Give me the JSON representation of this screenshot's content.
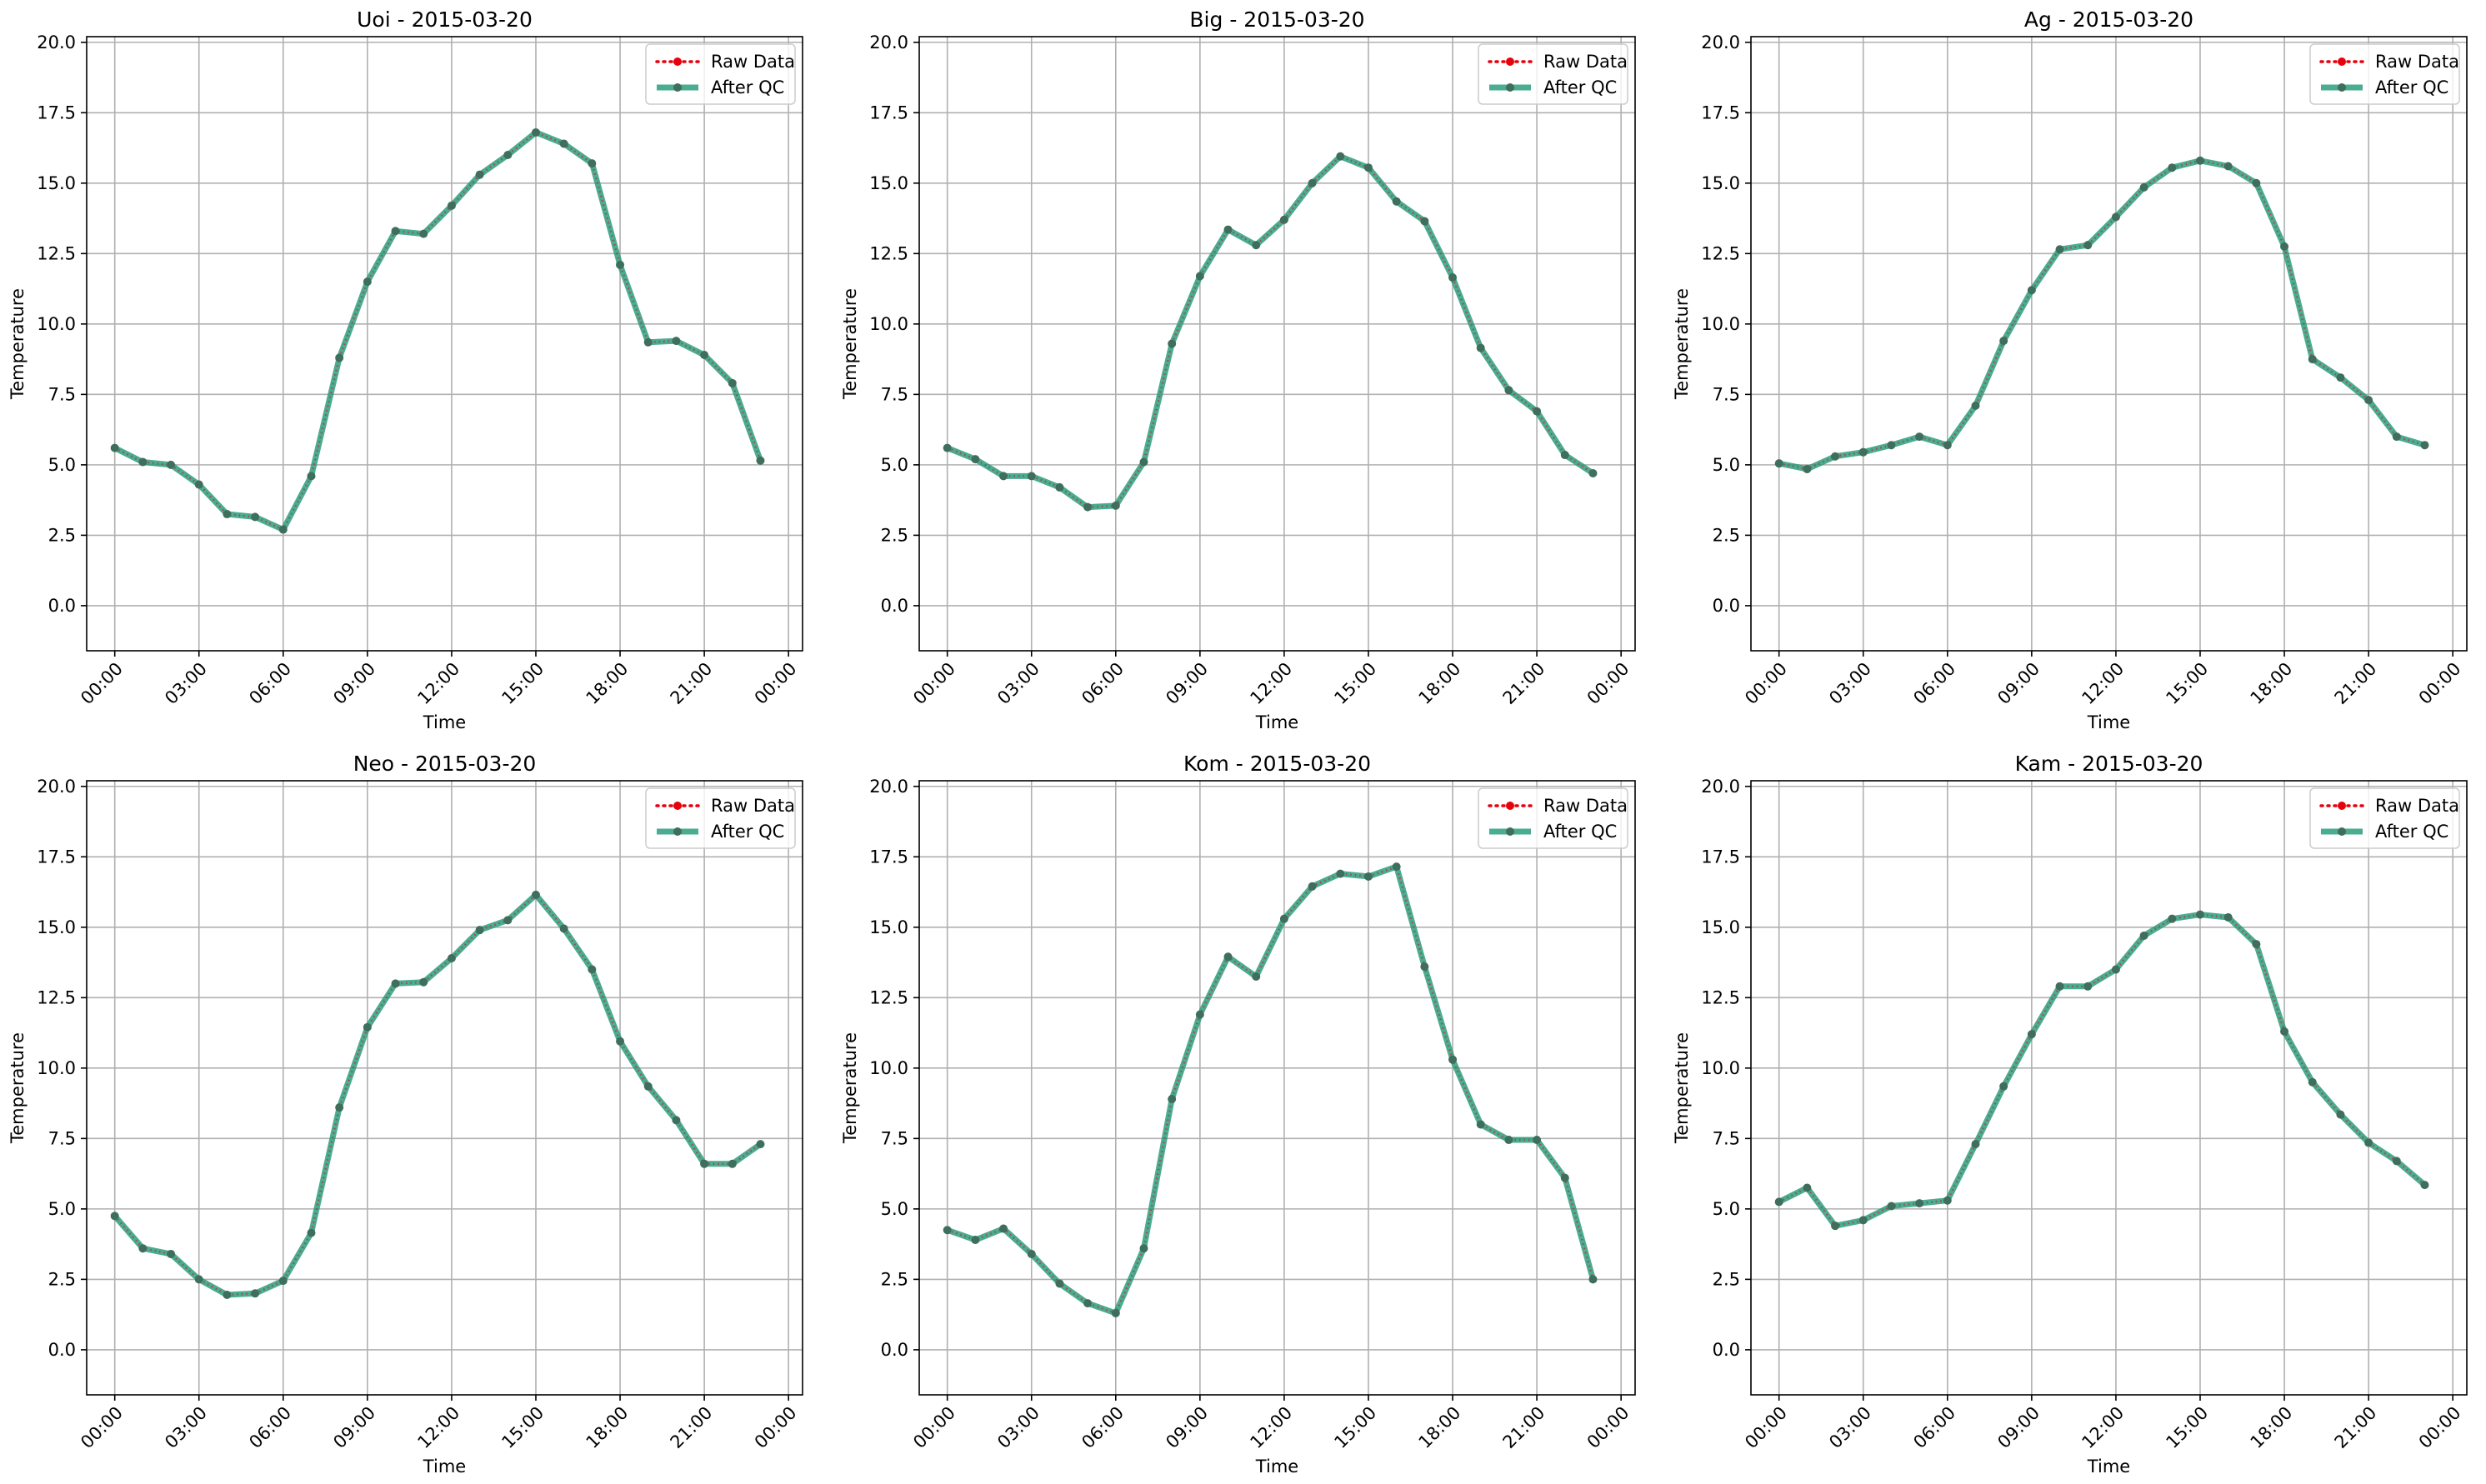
{
  "figure": {
    "background": "#ffffff",
    "colors": {
      "raw": "#e8000b",
      "qc": "#2a9d7e",
      "grid": "#b0b0b0",
      "axis": "#000000"
    }
  },
  "chart_data": [
    {
      "type": "line",
      "title": "Uoi - 2015-03-20",
      "xlabel": "Time",
      "ylabel": "Temperature",
      "ylim": [
        -1.6,
        20.2
      ],
      "xlim": [
        "-1:00",
        "24:30"
      ],
      "yticks": [
        "0.0",
        "2.5",
        "5.0",
        "7.5",
        "10.0",
        "12.5",
        "15.0",
        "17.5",
        "20.0"
      ],
      "xticks": [
        "00:00",
        "03:00",
        "06:00",
        "09:00",
        "12:00",
        "15:00",
        "18:00",
        "21:00",
        "00:00"
      ],
      "grid": true,
      "legend": "upper right",
      "x": [
        "00:00",
        "01:00",
        "02:00",
        "03:00",
        "04:00",
        "05:00",
        "06:00",
        "07:00",
        "08:00",
        "09:00",
        "10:00",
        "11:00",
        "12:00",
        "13:00",
        "14:00",
        "15:00",
        "16:00",
        "17:00",
        "18:00",
        "19:00",
        "20:00",
        "21:00",
        "22:00",
        "23:00"
      ],
      "series": [
        {
          "name": "Raw Data",
          "values": [
            5.6,
            5.1,
            5.0,
            4.3,
            3.25,
            3.15,
            2.7,
            4.6,
            8.8,
            11.5,
            13.3,
            13.2,
            14.2,
            15.3,
            16.0,
            16.8,
            16.4,
            15.7,
            12.1,
            9.35,
            9.4,
            8.9,
            7.9,
            5.15
          ]
        },
        {
          "name": "After QC",
          "values": [
            5.6,
            5.1,
            5.0,
            4.3,
            3.25,
            3.15,
            2.7,
            4.6,
            8.8,
            11.5,
            13.3,
            13.2,
            14.2,
            15.3,
            16.0,
            16.8,
            16.4,
            15.7,
            12.1,
            9.35,
            9.4,
            8.9,
            7.9,
            5.15
          ]
        }
      ]
    },
    {
      "type": "line",
      "title": "Big - 2015-03-20",
      "xlabel": "Time",
      "ylabel": "Temperature",
      "ylim": [
        -1.6,
        20.2
      ],
      "xlim": [
        "-1:00",
        "24:30"
      ],
      "yticks": [
        "0.0",
        "2.5",
        "5.0",
        "7.5",
        "10.0",
        "12.5",
        "15.0",
        "17.5",
        "20.0"
      ],
      "xticks": [
        "00:00",
        "03:00",
        "06:00",
        "09:00",
        "12:00",
        "15:00",
        "18:00",
        "21:00",
        "00:00"
      ],
      "grid": true,
      "legend": "upper right",
      "x": [
        "00:00",
        "01:00",
        "02:00",
        "03:00",
        "04:00",
        "05:00",
        "06:00",
        "07:00",
        "08:00",
        "09:00",
        "10:00",
        "11:00",
        "12:00",
        "13:00",
        "14:00",
        "15:00",
        "16:00",
        "17:00",
        "18:00",
        "19:00",
        "20:00",
        "21:00",
        "22:00",
        "23:00"
      ],
      "series": [
        {
          "name": "Raw Data",
          "values": [
            5.6,
            5.2,
            4.6,
            4.6,
            4.2,
            3.5,
            3.55,
            5.1,
            9.3,
            11.7,
            13.35,
            12.8,
            13.7,
            15.0,
            15.95,
            15.55,
            14.35,
            13.65,
            11.65,
            9.15,
            7.65,
            6.9,
            5.35,
            4.7
          ]
        },
        {
          "name": "After QC",
          "values": [
            5.6,
            5.2,
            4.6,
            4.6,
            4.2,
            3.5,
            3.55,
            5.1,
            9.3,
            11.7,
            13.35,
            12.8,
            13.7,
            15.0,
            15.95,
            15.55,
            14.35,
            13.65,
            11.65,
            9.15,
            7.65,
            6.9,
            5.35,
            4.7
          ]
        }
      ]
    },
    {
      "type": "line",
      "title": "Ag - 2015-03-20",
      "xlabel": "Time",
      "ylabel": "Temperature",
      "ylim": [
        -1.6,
        20.2
      ],
      "xlim": [
        "-1:00",
        "24:30"
      ],
      "yticks": [
        "0.0",
        "2.5",
        "5.0",
        "7.5",
        "10.0",
        "12.5",
        "15.0",
        "17.5",
        "20.0"
      ],
      "xticks": [
        "00:00",
        "03:00",
        "06:00",
        "09:00",
        "12:00",
        "15:00",
        "18:00",
        "21:00",
        "00:00"
      ],
      "grid": true,
      "legend": "upper right",
      "x": [
        "00:00",
        "01:00",
        "02:00",
        "03:00",
        "04:00",
        "05:00",
        "06:00",
        "07:00",
        "08:00",
        "09:00",
        "10:00",
        "11:00",
        "12:00",
        "13:00",
        "14:00",
        "15:00",
        "16:00",
        "17:00",
        "18:00",
        "19:00",
        "20:00",
        "21:00",
        "22:00",
        "23:00"
      ],
      "series": [
        {
          "name": "Raw Data",
          "values": [
            5.05,
            4.85,
            5.3,
            5.45,
            5.7,
            6.0,
            5.7,
            7.1,
            9.4,
            11.2,
            12.65,
            12.8,
            13.8,
            14.85,
            15.55,
            15.8,
            15.6,
            15.0,
            12.75,
            8.75,
            8.1,
            7.3,
            6.0,
            5.7
          ]
        },
        {
          "name": "After QC",
          "values": [
            5.05,
            4.85,
            5.3,
            5.45,
            5.7,
            6.0,
            5.7,
            7.1,
            9.4,
            11.2,
            12.65,
            12.8,
            13.8,
            14.85,
            15.55,
            15.8,
            15.6,
            15.0,
            12.75,
            8.75,
            8.1,
            7.3,
            6.0,
            5.7
          ]
        }
      ]
    },
    {
      "type": "line",
      "title": "Neo - 2015-03-20",
      "xlabel": "Time",
      "ylabel": "Temperature",
      "ylim": [
        -1.6,
        20.2
      ],
      "xlim": [
        "-1:00",
        "24:30"
      ],
      "yticks": [
        "0.0",
        "2.5",
        "5.0",
        "7.5",
        "10.0",
        "12.5",
        "15.0",
        "17.5",
        "20.0"
      ],
      "xticks": [
        "00:00",
        "03:00",
        "06:00",
        "09:00",
        "12:00",
        "15:00",
        "18:00",
        "21:00",
        "00:00"
      ],
      "grid": true,
      "legend": "upper right",
      "x": [
        "00:00",
        "01:00",
        "02:00",
        "03:00",
        "04:00",
        "05:00",
        "06:00",
        "07:00",
        "08:00",
        "09:00",
        "10:00",
        "11:00",
        "12:00",
        "13:00",
        "14:00",
        "15:00",
        "16:00",
        "17:00",
        "18:00",
        "19:00",
        "20:00",
        "21:00",
        "22:00",
        "23:00"
      ],
      "series": [
        {
          "name": "Raw Data",
          "values": [
            4.75,
            3.6,
            3.4,
            2.5,
            1.95,
            2.0,
            2.45,
            4.15,
            8.6,
            11.45,
            13.0,
            13.05,
            13.9,
            14.9,
            15.25,
            16.15,
            14.95,
            13.5,
            10.95,
            9.35,
            8.15,
            6.6,
            6.6,
            7.3
          ]
        },
        {
          "name": "After QC",
          "values": [
            4.75,
            3.6,
            3.4,
            2.5,
            1.95,
            2.0,
            2.45,
            4.15,
            8.6,
            11.45,
            13.0,
            13.05,
            13.9,
            14.9,
            15.25,
            16.15,
            14.95,
            13.5,
            10.95,
            9.35,
            8.15,
            6.6,
            6.6,
            7.3
          ]
        }
      ]
    },
    {
      "type": "line",
      "title": "Kom - 2015-03-20",
      "xlabel": "Time",
      "ylabel": "Temperature",
      "ylim": [
        -1.6,
        20.2
      ],
      "xlim": [
        "-1:00",
        "24:30"
      ],
      "yticks": [
        "0.0",
        "2.5",
        "5.0",
        "7.5",
        "10.0",
        "12.5",
        "15.0",
        "17.5",
        "20.0"
      ],
      "xticks": [
        "00:00",
        "03:00",
        "06:00",
        "09:00",
        "12:00",
        "15:00",
        "18:00",
        "21:00",
        "00:00"
      ],
      "grid": true,
      "legend": "upper right",
      "x": [
        "00:00",
        "01:00",
        "02:00",
        "03:00",
        "04:00",
        "05:00",
        "06:00",
        "07:00",
        "08:00",
        "09:00",
        "10:00",
        "11:00",
        "12:00",
        "13:00",
        "14:00",
        "15:00",
        "16:00",
        "17:00",
        "18:00",
        "19:00",
        "20:00",
        "21:00",
        "22:00",
        "23:00"
      ],
      "series": [
        {
          "name": "Raw Data",
          "values": [
            4.25,
            3.9,
            4.3,
            3.4,
            2.35,
            1.65,
            1.3,
            3.6,
            8.9,
            11.9,
            13.95,
            13.25,
            15.3,
            16.45,
            16.9,
            16.8,
            17.15,
            13.6,
            10.3,
            8.0,
            7.45,
            7.45,
            6.1,
            2.5
          ]
        },
        {
          "name": "After QC",
          "values": [
            4.25,
            3.9,
            4.3,
            3.4,
            2.35,
            1.65,
            1.3,
            3.6,
            8.9,
            11.9,
            13.95,
            13.25,
            15.3,
            16.45,
            16.9,
            16.8,
            17.15,
            13.6,
            10.3,
            8.0,
            7.45,
            7.45,
            6.1,
            2.5
          ]
        }
      ]
    },
    {
      "type": "line",
      "title": "Kam - 2015-03-20",
      "xlabel": "Time",
      "ylabel": "Temperature",
      "ylim": [
        -1.6,
        20.2
      ],
      "xlim": [
        "-1:00",
        "24:30"
      ],
      "yticks": [
        "0.0",
        "2.5",
        "5.0",
        "7.5",
        "10.0",
        "12.5",
        "15.0",
        "17.5",
        "20.0"
      ],
      "xticks": [
        "00:00",
        "03:00",
        "06:00",
        "09:00",
        "12:00",
        "15:00",
        "18:00",
        "21:00",
        "00:00"
      ],
      "grid": true,
      "legend": "upper right",
      "x": [
        "00:00",
        "01:00",
        "02:00",
        "03:00",
        "04:00",
        "05:00",
        "06:00",
        "07:00",
        "08:00",
        "09:00",
        "10:00",
        "11:00",
        "12:00",
        "13:00",
        "14:00",
        "15:00",
        "16:00",
        "17:00",
        "18:00",
        "19:00",
        "20:00",
        "21:00",
        "22:00",
        "23:00"
      ],
      "series": [
        {
          "name": "Raw Data",
          "values": [
            5.25,
            5.75,
            4.4,
            4.6,
            5.1,
            5.2,
            5.3,
            7.3,
            9.35,
            11.2,
            12.9,
            12.9,
            13.5,
            14.7,
            15.3,
            15.45,
            15.35,
            14.4,
            11.3,
            9.5,
            8.35,
            7.35,
            6.7,
            5.85
          ]
        },
        {
          "name": "After QC",
          "values": [
            5.25,
            5.75,
            4.4,
            4.6,
            5.1,
            5.2,
            5.3,
            7.3,
            9.35,
            11.2,
            12.9,
            12.9,
            13.5,
            14.7,
            15.3,
            15.45,
            15.35,
            14.4,
            11.3,
            9.5,
            8.35,
            7.35,
            6.7,
            5.85
          ]
        }
      ]
    }
  ]
}
